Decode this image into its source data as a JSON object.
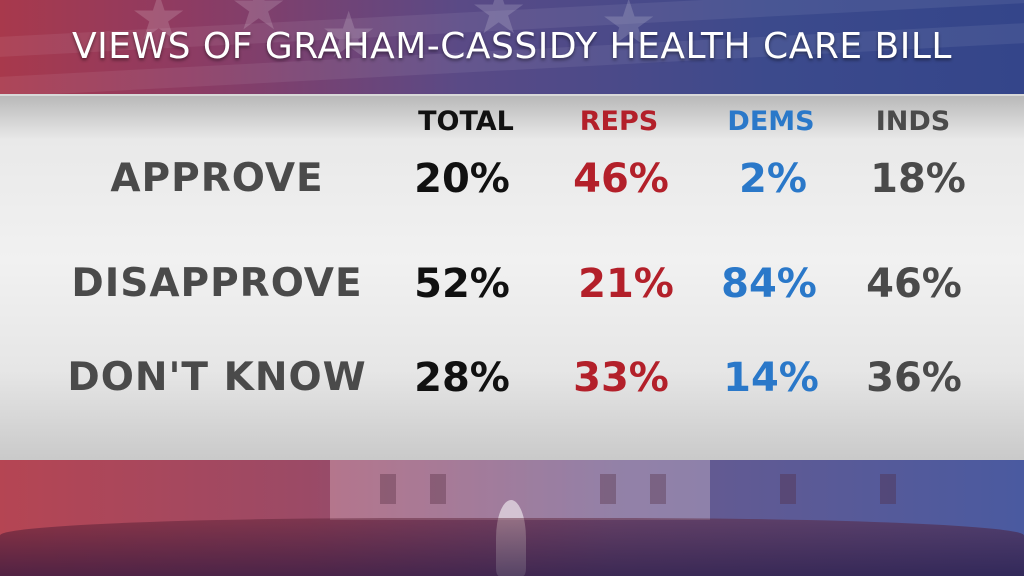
{
  "title": "VIEWS OF GRAHAM-CASSIDY HEALTH CARE BILL",
  "colors": {
    "total": "#111111",
    "reps": "#b3202a",
    "dems": "#2a78c9",
    "inds": "#4a4a4a"
  },
  "chart_data": {
    "type": "table",
    "title": "VIEWS OF GRAHAM-CASSIDY HEALTH CARE BILL",
    "columns": [
      "TOTAL",
      "REPS",
      "DEMS",
      "INDS"
    ],
    "rows": [
      {
        "label": "APPROVE",
        "values": [
          "20%",
          "46%",
          "2%",
          "18%"
        ]
      },
      {
        "label": "DISAPPROVE",
        "values": [
          "52%",
          "21%",
          "84%",
          "46%"
        ]
      },
      {
        "label": "DON'T KNOW",
        "values": [
          "28%",
          "33%",
          "14%",
          "36%"
        ]
      }
    ]
  }
}
